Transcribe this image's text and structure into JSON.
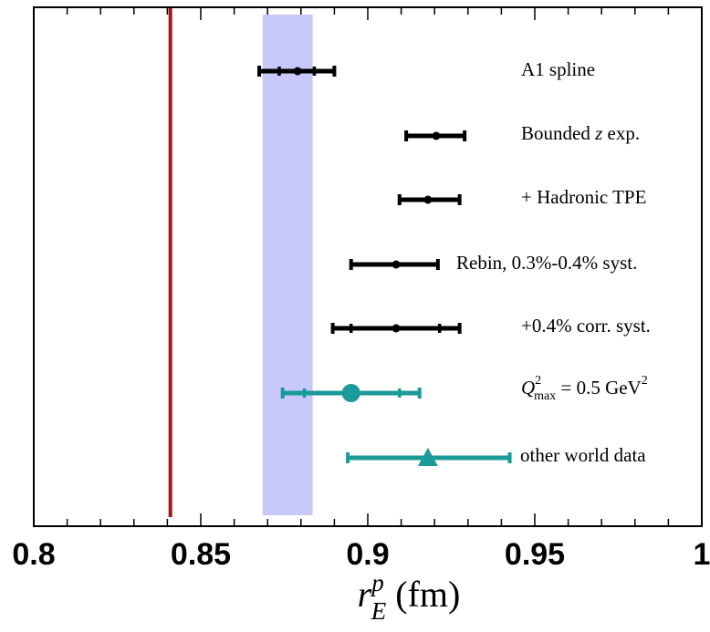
{
  "chart_data": {
    "type": "scatter",
    "title": "",
    "xlabel": {
      "main": "r",
      "sup": "p",
      "sub": "E",
      "unit": " (fm)"
    },
    "ylabel": "",
    "xlim": [
      0.8,
      1.0
    ],
    "xticks": [
      0.8,
      0.85,
      0.9,
      0.95,
      1.0
    ],
    "xtick_labels": [
      "0.8",
      "0.85",
      "0.9",
      "0.95",
      "1"
    ],
    "grid": false,
    "reference_line": {
      "x": 0.8409,
      "color": "#a01818"
    },
    "reference_band": {
      "x0": 0.8685,
      "x1": 0.8835,
      "color": "#c8c8fb"
    },
    "points": [
      {
        "label": "A1 spline",
        "x": 0.879,
        "inner": [
          0.8735,
          0.884
        ],
        "outer": [
          0.8675,
          0.89
        ],
        "color": "#000000",
        "marker": "dot"
      },
      {
        "label": "Bounded z exp.",
        "x": 0.9205,
        "inner": null,
        "outer": [
          0.9115,
          0.929
        ],
        "color": "#000000",
        "marker": "dot"
      },
      {
        "label": "+ Hadronic TPE",
        "x": 0.918,
        "inner": null,
        "outer": [
          0.9095,
          0.9275
        ],
        "color": "#000000",
        "marker": "dot"
      },
      {
        "label": "Rebin, 0.3%-0.4% syst.",
        "x": 0.9085,
        "inner": null,
        "outer": [
          0.895,
          0.921
        ],
        "color": "#000000",
        "marker": "dot"
      },
      {
        "label": "+0.4% corr. syst.",
        "x": 0.9085,
        "inner": [
          0.895,
          0.9215
        ],
        "outer": [
          0.8895,
          0.9275
        ],
        "color": "#000000",
        "marker": "dot"
      },
      {
        "label": "Q2max = 0.5 GeV2",
        "x": 0.895,
        "inner": [
          0.881,
          0.9095
        ],
        "outer": [
          0.8745,
          0.9155
        ],
        "color": "#1a9a98",
        "marker": "circle"
      },
      {
        "label": "other world data",
        "x": 0.918,
        "inner": null,
        "outer": [
          0.894,
          0.9425
        ],
        "color": "#1a9a98",
        "marker": "triangle"
      }
    ],
    "q2_label": {
      "var": "Q",
      "sup": "2",
      "sub": "max",
      "mid": " = 0.5 GeV",
      "sup2": "2"
    }
  }
}
